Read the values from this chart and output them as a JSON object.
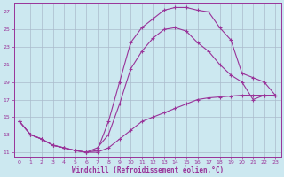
{
  "xlabel": "Windchill (Refroidissement éolien,°C)",
  "background_color": "#cce8f0",
  "grid_color": "#aabbcc",
  "line_color": "#993399",
  "spine_color": "#993399",
  "xlim": [
    -0.5,
    23.5
  ],
  "ylim": [
    10.5,
    28.0
  ],
  "xticks": [
    0,
    1,
    2,
    3,
    4,
    5,
    6,
    7,
    8,
    9,
    10,
    11,
    12,
    13,
    14,
    15,
    16,
    17,
    18,
    19,
    20,
    21,
    22,
    23
  ],
  "yticks": [
    11,
    13,
    15,
    17,
    19,
    21,
    23,
    25,
    27
  ],
  "curve1_x": [
    0,
    1,
    2,
    3,
    4,
    5,
    6,
    7,
    8,
    9,
    10,
    11,
    12,
    13,
    14,
    15,
    16,
    17,
    18,
    19,
    20,
    21,
    22,
    23
  ],
  "curve1_y": [
    14.5,
    13.0,
    12.5,
    11.8,
    11.5,
    11.2,
    11.0,
    11.2,
    14.5,
    19.0,
    23.5,
    25.2,
    26.2,
    27.2,
    27.5,
    27.5,
    27.2,
    27.0,
    25.2,
    23.8,
    20.0,
    19.5,
    19.0,
    17.5
  ],
  "curve2_x": [
    0,
    1,
    2,
    3,
    4,
    5,
    6,
    7,
    8,
    9,
    10,
    11,
    12,
    13,
    14,
    15,
    16,
    17,
    18,
    19,
    20,
    21,
    22,
    23
  ],
  "curve2_y": [
    14.5,
    13.0,
    12.5,
    11.8,
    11.5,
    11.2,
    11.0,
    11.5,
    13.0,
    16.5,
    20.5,
    22.5,
    24.0,
    25.0,
    25.2,
    24.8,
    23.5,
    22.5,
    21.0,
    19.8,
    19.0,
    17.0,
    17.5,
    17.5
  ],
  "curve3_x": [
    0,
    1,
    2,
    3,
    4,
    5,
    6,
    7,
    8,
    9,
    10,
    11,
    12,
    13,
    14,
    15,
    16,
    17,
    18,
    19,
    20,
    21,
    22,
    23
  ],
  "curve3_y": [
    14.5,
    13.0,
    12.5,
    11.8,
    11.5,
    11.2,
    11.0,
    11.0,
    11.5,
    12.5,
    13.5,
    14.5,
    15.0,
    15.5,
    16.0,
    16.5,
    17.0,
    17.2,
    17.3,
    17.4,
    17.5,
    17.5,
    17.5,
    17.5
  ],
  "xlabel_fontsize": 5.5,
  "tick_fontsize": 4.5
}
